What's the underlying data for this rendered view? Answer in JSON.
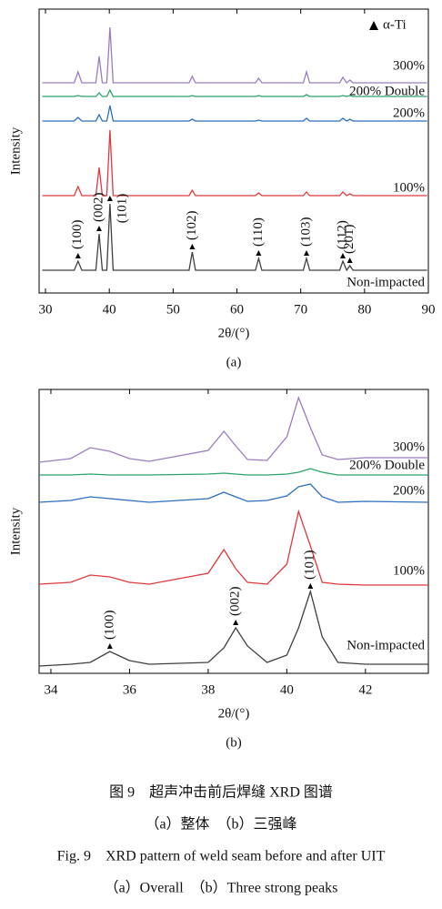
{
  "chart_data": [
    {
      "type": "line",
      "xlabel": "2θ/(°)",
      "ylabel": "Intensity",
      "caption": "(a)",
      "marker_legend": "α-Ti",
      "xlim": [
        29,
        90
      ],
      "ylim": [
        0,
        312
      ],
      "xticks": [
        30,
        40,
        50,
        60,
        70,
        80,
        90
      ],
      "x": [
        29.5,
        34.5,
        35.1,
        35.7,
        37.9,
        38.4,
        38.9,
        39.6,
        40.1,
        40.6,
        52.5,
        53.0,
        53.5,
        62.9,
        63.4,
        63.9,
        70.4,
        70.9,
        71.4,
        76.1,
        76.6,
        77.2,
        77.7,
        78.2,
        89.8
      ],
      "series": [
        {
          "name": "Non-impacted",
          "color": "#404040",
          "values": [
            25,
            25,
            35,
            25,
            25,
            65,
            25,
            25,
            98,
            25,
            25,
            45,
            25,
            25,
            38,
            25,
            25,
            38,
            25,
            25,
            35,
            25,
            30,
            25,
            25
          ]
        },
        {
          "name": "100%",
          "color": "#e0393e",
          "values": [
            107,
            107,
            117,
            107,
            107,
            138,
            107,
            107,
            179,
            107,
            107,
            113,
            107,
            107,
            110,
            107,
            107,
            111,
            107,
            107,
            111,
            107,
            109,
            107,
            107
          ]
        },
        {
          "name": "200%",
          "color": "#2e6fbf",
          "values": [
            189,
            189,
            193,
            189,
            189,
            196,
            189,
            189,
            206,
            189,
            189,
            191,
            189,
            189,
            190,
            189,
            189,
            192,
            189,
            189,
            192,
            189,
            191,
            189,
            189
          ]
        },
        {
          "name": "200% Double",
          "color": "#2aa56a",
          "values": [
            216,
            216,
            217,
            216,
            216,
            220,
            216,
            216,
            223,
            216,
            216,
            217,
            216,
            216,
            217,
            216,
            216,
            218,
            216,
            216,
            217,
            216,
            217,
            216,
            216
          ]
        },
        {
          "name": "300%",
          "color": "#9b7cc0",
          "values": [
            231,
            231,
            243,
            231,
            231,
            260,
            231,
            231,
            292,
            231,
            231,
            238,
            231,
            231,
            236,
            231,
            231,
            243,
            231,
            231,
            237,
            231,
            234,
            231,
            231
          ]
        }
      ],
      "annotations": [
        {
          "text": "(100)",
          "x": 35.1
        },
        {
          "text": "(002)",
          "x": 38.4
        },
        {
          "text": "(101)",
          "x": 40.1
        },
        {
          "text": "(102)",
          "x": 53.0
        },
        {
          "text": "(110)",
          "x": 63.4
        },
        {
          "text": "(103)",
          "x": 70.9
        },
        {
          "text": "(112)",
          "x": 76.6
        },
        {
          "text": "(201)",
          "x": 77.7
        }
      ]
    },
    {
      "type": "line",
      "xlabel": "2θ/(°)",
      "ylabel": "Intensity",
      "caption": "(b)",
      "xlim": [
        33.7,
        43.6
      ],
      "ylim": [
        0,
        312
      ],
      "xticks": [
        34,
        36,
        38,
        40,
        42
      ],
      "x": [
        33.7,
        34.5,
        35.0,
        35.5,
        36.0,
        36.5,
        38.0,
        38.4,
        38.7,
        39.0,
        39.5,
        40.0,
        40.3,
        40.6,
        40.9,
        41.3,
        42.0,
        43.6
      ],
      "series": [
        {
          "name": "Non-impacted",
          "color": "#404040",
          "values": [
            8,
            10,
            12,
            24,
            14,
            10,
            12,
            28,
            50,
            30,
            12,
            20,
            50,
            90,
            40,
            12,
            10,
            10
          ]
        },
        {
          "name": "100%",
          "color": "#e0393e",
          "values": [
            98,
            100,
            108,
            106,
            100,
            98,
            110,
            136,
            115,
            100,
            98,
            120,
            178,
            140,
            100,
            98,
            97,
            97
          ]
        },
        {
          "name": "200%",
          "color": "#2e6fbf",
          "values": [
            188,
            190,
            194,
            192,
            190,
            188,
            192,
            199,
            194,
            189,
            190,
            195,
            205,
            208,
            194,
            188,
            189,
            188
          ]
        },
        {
          "name": "200% Double",
          "color": "#2aa56a",
          "values": [
            218,
            218,
            219,
            218,
            218,
            218,
            219,
            220,
            219,
            218,
            218,
            219,
            221,
            225,
            221,
            218,
            218,
            218
          ]
        },
        {
          "name": "300%",
          "color": "#9b7cc0",
          "values": [
            232,
            236,
            248,
            244,
            236,
            233,
            245,
            266,
            250,
            235,
            234,
            260,
            303,
            270,
            240,
            235,
            237,
            237
          ]
        }
      ],
      "annotations": [
        {
          "text": "(100)",
          "x": 35.5
        },
        {
          "text": "(002)",
          "x": 38.7
        },
        {
          "text": "(101)",
          "x": 40.6
        }
      ]
    }
  ],
  "figure_caption": {
    "cn_title": "图 9　超声冲击前后焊缝 XRD 图谱",
    "cn_sub": "（a）整体　（b）三强峰",
    "en_title": "Fig. 9　XRD pattern of weld seam before and after UIT",
    "en_sub": "（a）Overall　（b）Three strong peaks"
  }
}
